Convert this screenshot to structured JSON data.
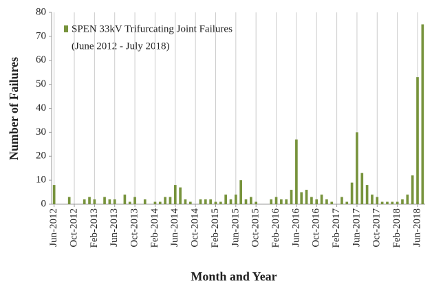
{
  "chart_data": {
    "type": "bar",
    "x_label": "Month and Year",
    "y_label": "Number of Failures",
    "legend_note": "(June 2012 - July 2018)",
    "categories": [
      "Jun-2012",
      null,
      null,
      null,
      "Oct-2012",
      null,
      null,
      null,
      "Feb-2013",
      null,
      null,
      null,
      "Jun-2013",
      null,
      null,
      null,
      "Oct-2013",
      null,
      null,
      null,
      "Feb-2014",
      null,
      null,
      null,
      "Jun-2014",
      null,
      null,
      null,
      "Oct-2014",
      null,
      null,
      null,
      "Feb-2015",
      null,
      null,
      null,
      "Jun-2015",
      null,
      null,
      null,
      "Oct-2015",
      null,
      null,
      null,
      "Feb-2016",
      null,
      null,
      null,
      "Jun-2016",
      null,
      null,
      null,
      "Oct-2016",
      null,
      null,
      null,
      "Feb-2017",
      null,
      null,
      null,
      "Jun-2017",
      null,
      null,
      null,
      "Oct-2017",
      null,
      null,
      null,
      "Feb-2018",
      null,
      null,
      null,
      "Jun-2018",
      null
    ],
    "series": [
      {
        "name": "SPEN 33kV Trifurcating Joint Failures",
        "color": "#77933c",
        "values": [
          8,
          0,
          0,
          3,
          0,
          0,
          2,
          3,
          2,
          0,
          3,
          2,
          2,
          0,
          4,
          1,
          3,
          0,
          2,
          0,
          1,
          1,
          3,
          3,
          8,
          7,
          2,
          1,
          0,
          2,
          2,
          2,
          1,
          1,
          4,
          2,
          4,
          10,
          2,
          3,
          1,
          0,
          0,
          2,
          3,
          2,
          2,
          6,
          27,
          5,
          6,
          3,
          2,
          4,
          2,
          1,
          0,
          3,
          1,
          9,
          30,
          13,
          8,
          4,
          3,
          1,
          1,
          1,
          1,
          2,
          4,
          12,
          53,
          75
        ]
      }
    ],
    "ylim": [
      0,
      80
    ],
    "yticks": [
      0,
      10,
      20,
      30,
      40,
      50,
      60,
      70,
      80
    ],
    "grid": "x",
    "legend": "top-left"
  }
}
